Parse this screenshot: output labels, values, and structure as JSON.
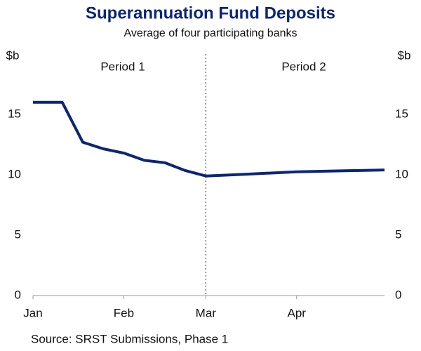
{
  "chart_data": {
    "type": "line",
    "title": "Superannuation Fund Deposits",
    "subtitle": "Average of four participating banks",
    "y_unit": "$b",
    "source": "Source: SRST Submissions, Phase 1",
    "annotations": [
      "Period 1",
      "Period 2"
    ],
    "divider_x": 59,
    "x": [
      0,
      10,
      17,
      24,
      31,
      38,
      45,
      52,
      59,
      73,
      90,
      120
    ],
    "series": [
      {
        "name": "Deposits",
        "color": "#0c2577",
        "values": [
          16.0,
          16.0,
          12.7,
          12.15,
          11.8,
          11.2,
          11.0,
          10.35,
          9.9,
          10.05,
          10.25,
          10.4
        ]
      }
    ],
    "xlim": [
      0,
      120
    ],
    "xticks": [
      {
        "value": 0,
        "label": "Jan"
      },
      {
        "value": 31,
        "label": "Feb"
      },
      {
        "value": 59,
        "label": "Mar"
      },
      {
        "value": 90,
        "label": "Apr"
      }
    ],
    "ylim": [
      0,
      20
    ],
    "yticks": [
      0,
      5,
      10,
      15
    ]
  }
}
